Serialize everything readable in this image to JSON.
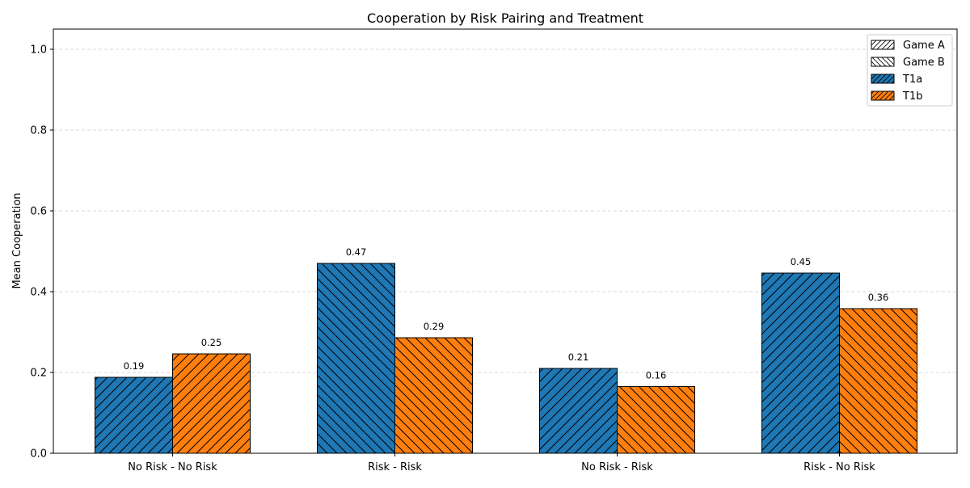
{
  "chart_data": {
    "type": "bar",
    "title": "Cooperation by Risk Pairing and Treatment",
    "xlabel": "",
    "ylabel": "Mean Cooperation",
    "ylim": [
      0,
      1.05
    ],
    "yticks": [
      0.0,
      0.2,
      0.4,
      0.6,
      0.8,
      1.0
    ],
    "ytick_labels": [
      "0.0",
      "0.2",
      "0.4",
      "0.6",
      "0.8",
      "1.0"
    ],
    "grid": "y-dashed",
    "legend_position": "top-right",
    "categories": [
      "No Risk - No Risk",
      "Risk - Risk",
      "No Risk - Risk",
      "Risk - No Risk"
    ],
    "series": [
      {
        "name": "T1a",
        "color": "#1f77b4",
        "values": [
          0.188,
          0.47,
          0.21,
          0.446
        ],
        "labels": [
          "0.19",
          "0.47",
          "0.21",
          "0.45"
        ],
        "game": [
          "A",
          "B",
          "A",
          "A"
        ]
      },
      {
        "name": "T1b",
        "color": "#ff7f0e",
        "values": [
          0.246,
          0.286,
          0.165,
          0.358
        ],
        "labels": [
          "0.25",
          "0.29",
          "0.16",
          "0.36"
        ],
        "game": [
          "A",
          "B",
          "B",
          "B"
        ]
      }
    ],
    "legend": [
      {
        "label": "Game A",
        "pattern": "forward-hatch",
        "color": "#ffffff"
      },
      {
        "label": "Game B",
        "pattern": "back-hatch",
        "color": "#ffffff"
      },
      {
        "label": "T1a",
        "pattern": "forward-hatch",
        "color": "#1f77b4"
      },
      {
        "label": "T1b",
        "pattern": "forward-hatch",
        "color": "#ff7f0e"
      }
    ]
  }
}
